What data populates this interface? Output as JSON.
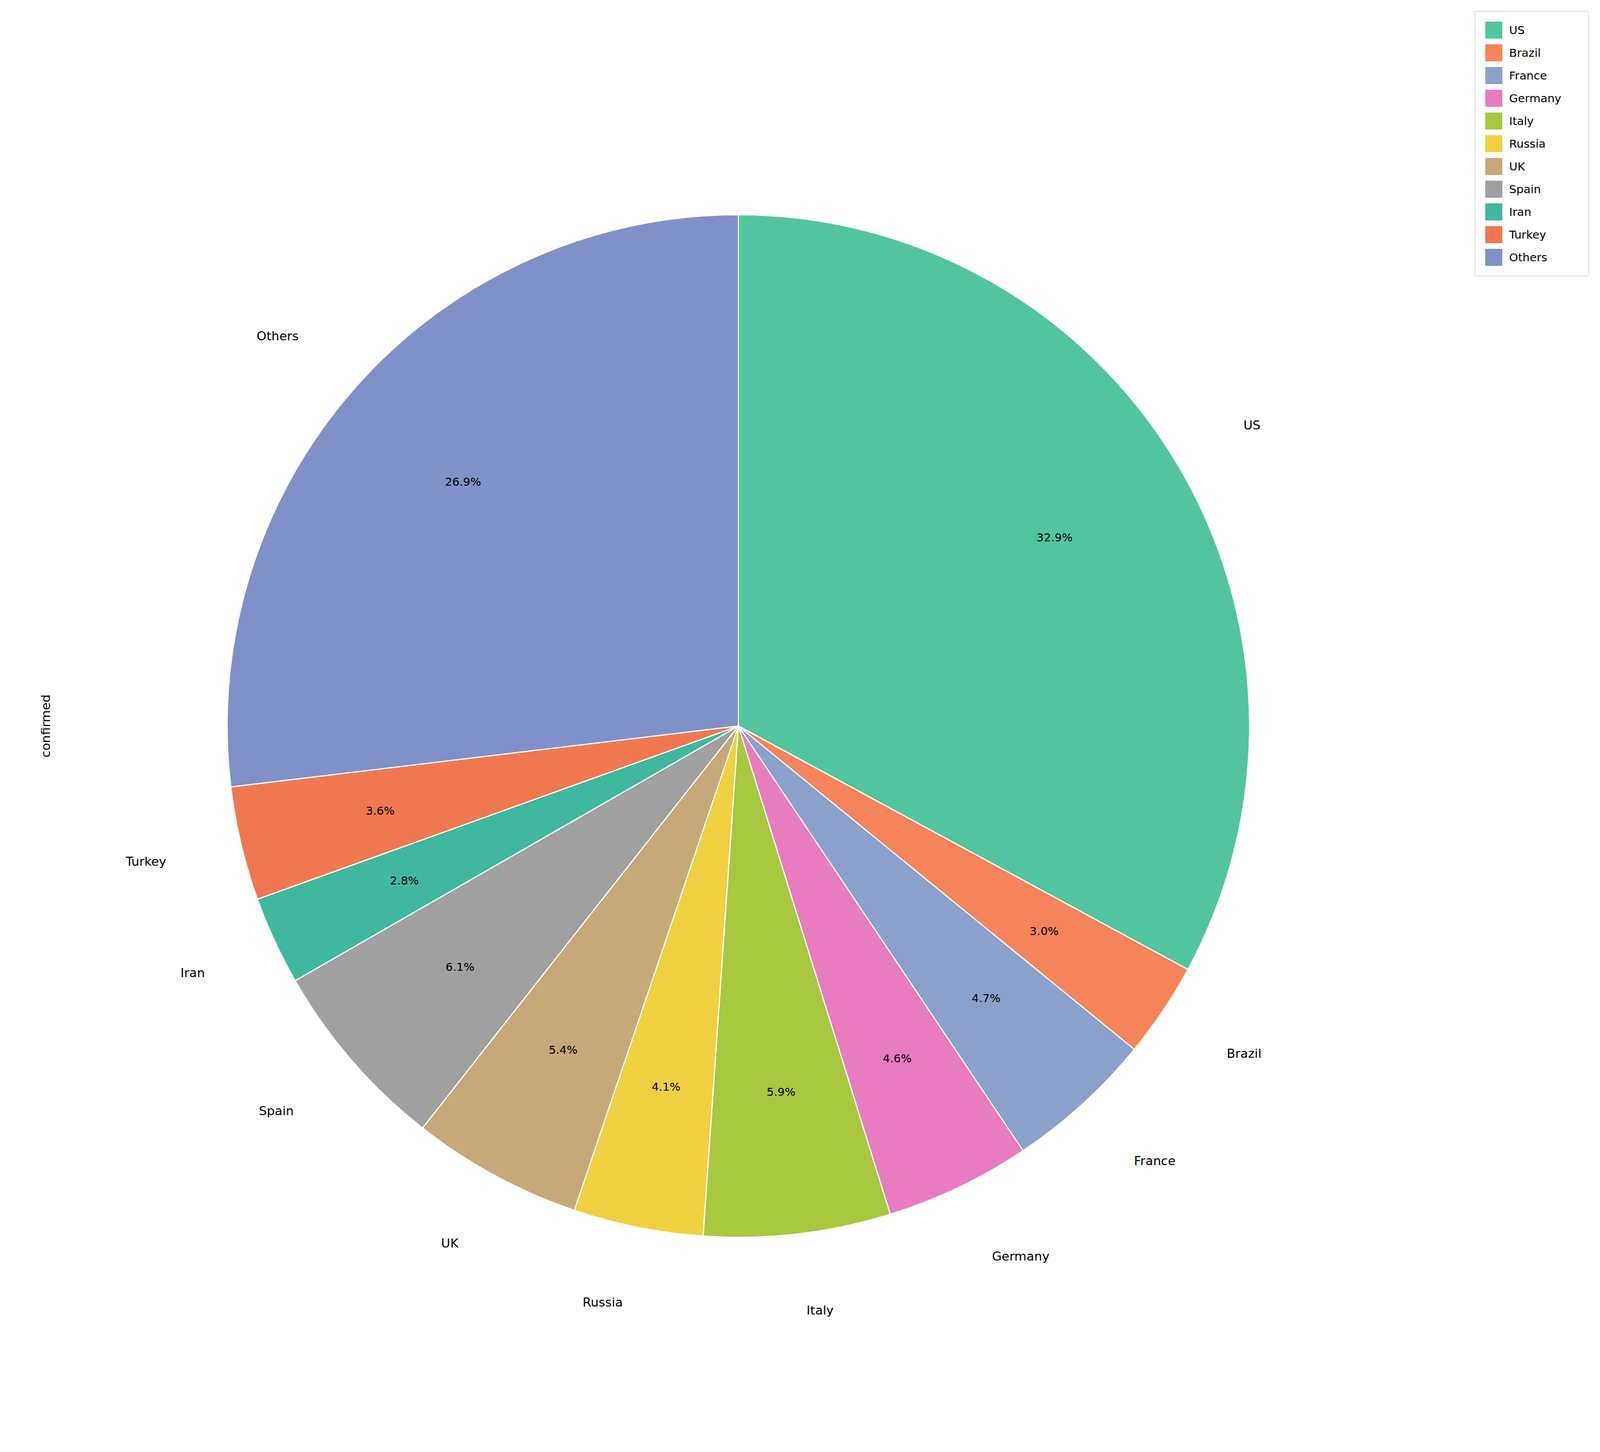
{
  "chart_data": {
    "type": "pie",
    "ylabel": "confirmed",
    "categories": [
      "US",
      "Brazil",
      "France",
      "Germany",
      "Italy",
      "Russia",
      "UK",
      "Spain",
      "Iran",
      "Turkey",
      "Others"
    ],
    "values": [
      32.9,
      3.0,
      4.7,
      4.6,
      5.9,
      4.1,
      5.4,
      6.1,
      2.8,
      3.6,
      26.9
    ],
    "value_labels": [
      "32.9%",
      "3.0%",
      "4.7%",
      "4.6%",
      "5.9%",
      "4.1%",
      "5.4%",
      "6.1%",
      "2.8%",
      "3.6%",
      "26.9%"
    ],
    "colors": [
      "#52c4a0",
      "#f5845a",
      "#8ca0cc",
      "#e87cbf",
      "#a8c840",
      "#f0d040",
      "#c8a878",
      "#a0a0a0",
      "#40b8a0",
      "#f07850",
      "#8090c8"
    ],
    "data_labels": true,
    "legend": "upper right"
  }
}
